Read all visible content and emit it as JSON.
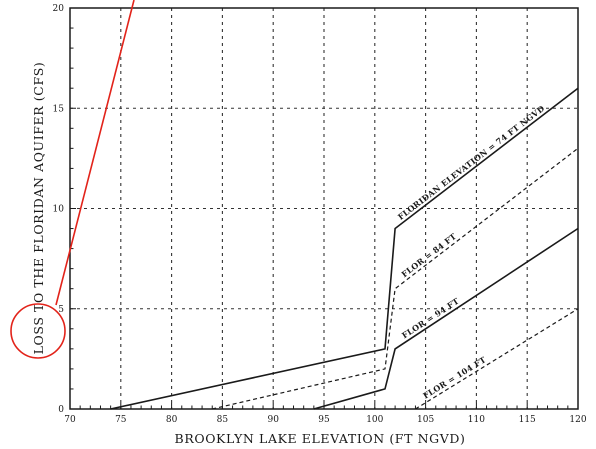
{
  "chart_data": {
    "type": "line",
    "xlabel": "BROOKLYN LAKE ELEVATION (FT NGVD)",
    "ylabel": "LOSS TO THE FLORIDAN AQUIFER (CFS)",
    "xlim": [
      70,
      120
    ],
    "ylim": [
      0,
      20
    ],
    "x_ticks": [
      70,
      75,
      80,
      85,
      90,
      95,
      100,
      105,
      110,
      115,
      120
    ],
    "y_ticks": [
      0,
      5,
      10,
      15,
      20
    ],
    "x_tick_labels": [
      "70",
      "75",
      "80",
      "85",
      "90",
      "95",
      "100",
      "105",
      "110",
      "115",
      "120"
    ],
    "y_tick_labels": [
      "0",
      "5",
      "10",
      "15",
      "20"
    ],
    "grid": true,
    "series": [
      {
        "name": "FLORIDAN ELEVATION = 74 FT NGVD",
        "style": "solid",
        "x": [
          74,
          101,
          102,
          120
        ],
        "y": [
          0,
          3,
          9,
          16
        ]
      },
      {
        "name": "FLOR = 84 FT",
        "style": "dashed",
        "x": [
          84,
          101,
          102,
          120
        ],
        "y": [
          0,
          2,
          6,
          13
        ]
      },
      {
        "name": "FLOR = 94 FT",
        "style": "solid",
        "x": [
          94,
          101,
          102,
          120
        ],
        "y": [
          0,
          1,
          3,
          9
        ]
      },
      {
        "name": "FLOR = 104 FT",
        "style": "dashed",
        "x": [
          104,
          120
        ],
        "y": [
          0,
          5
        ]
      }
    ],
    "annotation": {
      "shape": "circle",
      "color": "#e2231a",
      "with_pointer_line": true
    }
  }
}
